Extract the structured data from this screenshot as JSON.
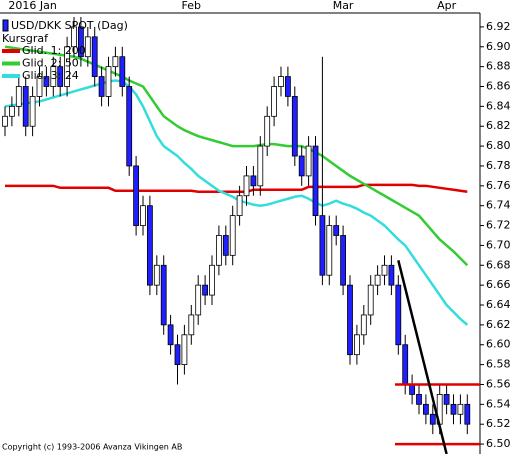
{
  "chart_data": {
    "type": "candlestick",
    "title": "USD/DKK SPOT (Dag)",
    "subtitle": "Kursgraf",
    "copyright": "Copyright (c) 1993-2006 Avanza Vikingen AB",
    "categories": [
      null,
      null,
      null,
      null,
      "2016 Jan",
      null,
      null,
      null,
      null,
      null,
      null,
      null,
      null,
      null,
      null,
      null,
      null,
      null,
      null,
      null,
      null,
      null,
      null,
      null,
      null,
      null,
      null,
      "Feb",
      null,
      null,
      null,
      null,
      null,
      null,
      null,
      null,
      null,
      null,
      null,
      null,
      null,
      null,
      null,
      null,
      null,
      null,
      null,
      null,
      null,
      "Mar",
      null,
      null,
      null,
      null,
      null,
      null,
      null,
      null,
      null,
      null,
      null,
      null,
      null,
      null,
      "Apr",
      null,
      null,
      null
    ],
    "open": [
      6.82,
      6.83,
      6.84,
      6.86,
      6.82,
      6.85,
      6.87,
      6.86,
      6.88,
      6.86,
      6.9,
      6.92,
      6.89,
      6.91,
      6.87,
      6.85,
      6.88,
      6.89,
      6.86,
      6.78,
      6.72,
      6.74,
      6.66,
      6.68,
      6.62,
      6.6,
      6.58,
      6.61,
      6.63,
      6.66,
      6.65,
      6.68,
      6.71,
      6.69,
      6.73,
      6.75,
      6.77,
      6.76,
      6.8,
      6.83,
      6.86,
      6.87,
      6.85,
      6.79,
      6.77,
      6.8,
      6.73,
      6.67,
      6.72,
      6.71,
      6.66,
      6.59,
      6.61,
      6.63,
      6.66,
      6.67,
      6.68,
      6.66,
      6.6,
      6.56,
      6.55,
      6.54,
      6.53,
      6.52,
      6.55,
      6.54,
      6.53,
      6.54
    ],
    "high": [
      6.84,
      6.85,
      6.87,
      6.87,
      6.86,
      6.88,
      6.88,
      6.89,
      6.89,
      6.91,
      6.93,
      6.93,
      6.92,
      6.92,
      6.88,
      6.89,
      6.9,
      6.9,
      6.87,
      6.79,
      6.75,
      6.75,
      6.69,
      6.69,
      6.63,
      6.61,
      6.62,
      6.64,
      6.67,
      6.67,
      6.69,
      6.72,
      6.72,
      6.74,
      6.76,
      6.78,
      6.78,
      6.81,
      6.84,
      6.87,
      6.88,
      6.88,
      6.86,
      6.8,
      6.81,
      6.81,
      6.89,
      6.73,
      6.73,
      6.72,
      6.67,
      6.62,
      6.64,
      6.67,
      6.68,
      6.69,
      6.69,
      6.67,
      6.61,
      6.57,
      6.56,
      6.55,
      6.54,
      6.56,
      6.56,
      6.55,
      6.55,
      6.55
    ],
    "low": [
      6.81,
      6.82,
      6.83,
      6.81,
      6.81,
      6.84,
      6.85,
      6.85,
      6.85,
      6.85,
      6.89,
      6.88,
      6.88,
      6.86,
      6.84,
      6.84,
      6.87,
      6.85,
      6.77,
      6.71,
      6.71,
      6.65,
      6.65,
      6.61,
      6.59,
      6.56,
      6.57,
      6.6,
      6.62,
      6.64,
      6.64,
      6.67,
      6.68,
      6.68,
      6.72,
      6.74,
      6.75,
      6.75,
      6.79,
      6.82,
      6.85,
      6.84,
      6.78,
      6.76,
      6.76,
      6.72,
      6.66,
      6.66,
      6.7,
      6.65,
      6.58,
      6.58,
      6.6,
      6.62,
      6.65,
      6.66,
      6.65,
      6.59,
      6.55,
      6.54,
      6.53,
      6.52,
      6.51,
      6.51,
      6.53,
      6.52,
      6.52,
      6.51
    ],
    "close": [
      6.83,
      6.84,
      6.86,
      6.82,
      6.85,
      6.87,
      6.86,
      6.88,
      6.86,
      6.9,
      6.92,
      6.89,
      6.91,
      6.87,
      6.85,
      6.88,
      6.89,
      6.86,
      6.78,
      6.72,
      6.74,
      6.66,
      6.68,
      6.62,
      6.6,
      6.58,
      6.61,
      6.63,
      6.66,
      6.65,
      6.68,
      6.71,
      6.69,
      6.73,
      6.75,
      6.77,
      6.76,
      6.8,
      6.83,
      6.86,
      6.87,
      6.85,
      6.79,
      6.77,
      6.8,
      6.73,
      6.67,
      6.72,
      6.71,
      6.66,
      6.59,
      6.61,
      6.63,
      6.66,
      6.67,
      6.68,
      6.66,
      6.6,
      6.56,
      6.55,
      6.54,
      6.53,
      6.52,
      6.55,
      6.54,
      6.53,
      6.54,
      6.52
    ],
    "up_color": "#ffffff",
    "down_color": "#1f1fff",
    "series": [
      {
        "name": "Glid. 1: 200",
        "color": "#e00000",
        "values": [
          6.76,
          6.76,
          6.76,
          6.76,
          6.76,
          6.76,
          6.76,
          6.76,
          6.758,
          6.758,
          6.758,
          6.758,
          6.758,
          6.758,
          6.758,
          6.758,
          6.755,
          6.755,
          6.755,
          6.755,
          6.755,
          6.755,
          6.755,
          6.755,
          6.755,
          6.755,
          6.755,
          6.755,
          6.754,
          6.754,
          6.754,
          6.754,
          6.754,
          6.754,
          6.754,
          6.754,
          6.756,
          6.756,
          6.756,
          6.756,
          6.756,
          6.756,
          6.756,
          6.756,
          6.759,
          6.759,
          6.759,
          6.759,
          6.759,
          6.759,
          6.759,
          6.759,
          6.761,
          6.761,
          6.761,
          6.761,
          6.761,
          6.761,
          6.761,
          6.761,
          6.76,
          6.76,
          6.759,
          6.758,
          6.757,
          6.756,
          6.755,
          6.754
        ]
      },
      {
        "name": "Glid. 2: 50",
        "color": "#33cc33",
        "values": [
          6.9,
          6.899,
          6.898,
          6.897,
          6.896,
          6.895,
          6.894,
          6.893,
          6.892,
          6.891,
          6.89,
          6.888,
          6.885,
          6.882,
          6.879,
          6.876,
          6.873,
          6.87,
          6.866,
          6.863,
          6.86,
          6.85,
          6.84,
          6.83,
          6.825,
          6.82,
          6.816,
          6.813,
          6.81,
          6.808,
          6.806,
          6.804,
          6.802,
          6.8,
          6.8,
          6.8,
          6.8,
          6.801,
          6.802,
          6.802,
          6.801,
          6.8,
          6.8,
          6.8,
          6.797,
          6.794,
          6.79,
          6.785,
          6.78,
          6.775,
          6.77,
          6.766,
          6.762,
          6.758,
          6.754,
          6.75,
          6.746,
          6.742,
          6.738,
          6.734,
          6.73,
          6.722,
          6.714,
          6.706,
          6.7,
          6.694,
          6.687,
          6.68
        ]
      },
      {
        "name": "Glid. 3: 24",
        "color": "#33dddd",
        "values": [
          6.84,
          6.841,
          6.842,
          6.843,
          6.844,
          6.845,
          6.847,
          6.849,
          6.851,
          6.853,
          6.855,
          6.857,
          6.859,
          6.861,
          6.863,
          6.865,
          6.866,
          6.865,
          6.86,
          6.852,
          6.84,
          6.825,
          6.81,
          6.8,
          6.795,
          6.79,
          6.783,
          6.777,
          6.77,
          6.765,
          6.76,
          6.755,
          6.752,
          6.749,
          6.745,
          6.743,
          6.741,
          6.74,
          6.741,
          6.743,
          6.745,
          6.747,
          6.749,
          6.75,
          6.747,
          6.743,
          6.74,
          6.742,
          6.745,
          6.742,
          6.74,
          6.737,
          6.733,
          6.73,
          6.725,
          6.72,
          6.713,
          6.706,
          6.7,
          6.69,
          6.68,
          6.67,
          6.66,
          6.65,
          6.64,
          6.633,
          6.626,
          6.62
        ]
      }
    ],
    "hlines": {
      "color": "#e00000",
      "values": [
        6.56,
        6.5
      ]
    },
    "trend_line": {
      "color": "#000000",
      "x": [
        57,
        64
      ],
      "y": [
        6.685,
        6.49
      ]
    },
    "ylim": [
      6.49,
      6.934
    ],
    "yticks": [
      {
        "value": 6.5,
        "label": "6.50"
      },
      6.52,
      6.54,
      6.56,
      6.58,
      {
        "value": 6.6,
        "label": "6.60"
      },
      6.62,
      6.64,
      6.66,
      6.68,
      {
        "value": 6.7,
        "label": "6.70"
      },
      6.72,
      6.74,
      6.76,
      6.78,
      {
        "value": 6.8,
        "label": "6.80"
      },
      6.82,
      6.84,
      6.86,
      6.88,
      {
        "value": 6.9,
        "label": "6.90"
      },
      6.92
    ]
  }
}
